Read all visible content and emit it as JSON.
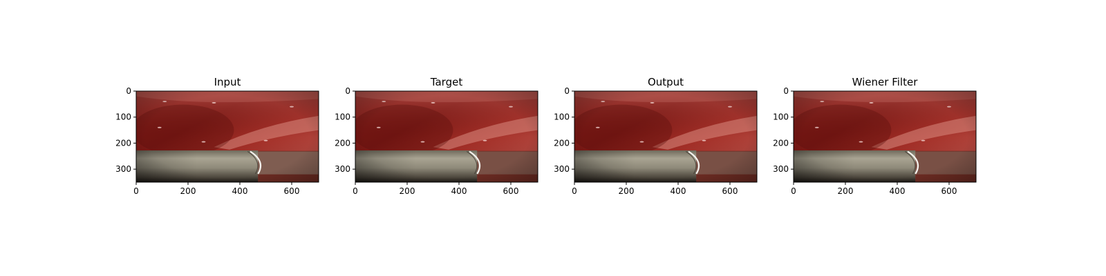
{
  "chart_data": {
    "type": "image-grid",
    "panels": [
      {
        "title": "Input"
      },
      {
        "title": "Target"
      },
      {
        "title": "Output"
      },
      {
        "title": "Wiener Filter"
      }
    ],
    "xlim": [
      0,
      704
    ],
    "ylim": [
      350,
      0
    ],
    "xticks": [
      0,
      200,
      400,
      600
    ],
    "yticks": [
      0,
      100,
      200,
      300
    ],
    "xtick_labels": [
      "0",
      "200",
      "400",
      "600"
    ],
    "ytick_labels": [
      "0",
      "100",
      "200",
      "300"
    ],
    "image_description_colors": {
      "tissue_dark": "#6e1512",
      "tissue_mid": "#9a2a24",
      "tissue_light": "#c76a60",
      "instrument": "#8e8a78",
      "instrument_light": "#b8b4a2",
      "instrument_shadow": "#2a2520"
    }
  }
}
